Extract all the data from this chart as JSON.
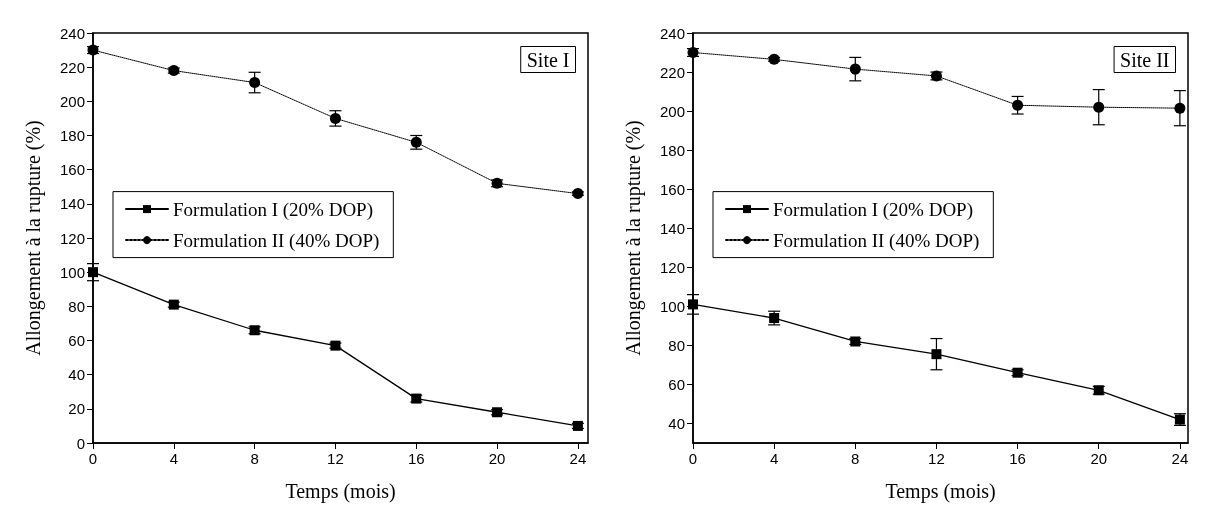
{
  "chart_data": [
    {
      "type": "line",
      "annotations": [
        "Site I"
      ],
      "xlabel": "Temps (mois)",
      "ylabel": "Allongement à la rupture (%)",
      "x": [
        0,
        4,
        8,
        12,
        16,
        20,
        24
      ],
      "xlim": [
        0,
        24.5
      ],
      "xticks": [
        0,
        4,
        8,
        12,
        16,
        20,
        24
      ],
      "ylim": [
        0,
        240
      ],
      "yticks": [
        0,
        20,
        40,
        60,
        80,
        100,
        120,
        140,
        160,
        180,
        200,
        220,
        240
      ],
      "legend": "left",
      "grid": false,
      "series": [
        {
          "name": "Formulation I (20% DOP)",
          "color": "#000000",
          "marker": "square",
          "line_style": "solid",
          "values": [
            100,
            81,
            66,
            57,
            26,
            18,
            10
          ],
          "errors": [
            5,
            1.5,
            2,
            1.5,
            2,
            1.5,
            1.5
          ]
        },
        {
          "name": "Formulation II (40% DOP)",
          "color": "#000000",
          "marker": "circle",
          "line_style": "dotted",
          "values": [
            230,
            218,
            211,
            190,
            176,
            152,
            146
          ],
          "errors": [
            2,
            1.5,
            6,
            4.5,
            4,
            2,
            1
          ]
        }
      ]
    },
    {
      "type": "line",
      "annotations": [
        "Site II"
      ],
      "xlabel": "Temps (mois)",
      "ylabel": "Allongement à la rupture (%)",
      "x": [
        0,
        4,
        8,
        12,
        16,
        20,
        24
      ],
      "xlim": [
        0,
        24.4
      ],
      "xticks": [
        0,
        4,
        8,
        12,
        16,
        20,
        24
      ],
      "ylim": [
        30,
        240
      ],
      "yticks": [
        40,
        60,
        80,
        100,
        120,
        140,
        160,
        180,
        200,
        220,
        240
      ],
      "legend": "left",
      "grid": false,
      "series": [
        {
          "name": "Formulation I (20% DOP)",
          "color": "#000000",
          "marker": "square",
          "line_style": "solid",
          "values": [
            101,
            94,
            82,
            75.5,
            66,
            57,
            42
          ],
          "errors": [
            5,
            3.5,
            1.5,
            8,
            1.5,
            2,
            3
          ]
        },
        {
          "name": "Formulation II (40% DOP)",
          "color": "#000000",
          "marker": "circle",
          "line_style": "dotted",
          "values": [
            230,
            226.5,
            221.5,
            218,
            203,
            202,
            201.5
          ],
          "errors": [
            2,
            1,
            6,
            2,
            4.5,
            9,
            9
          ]
        }
      ]
    }
  ]
}
